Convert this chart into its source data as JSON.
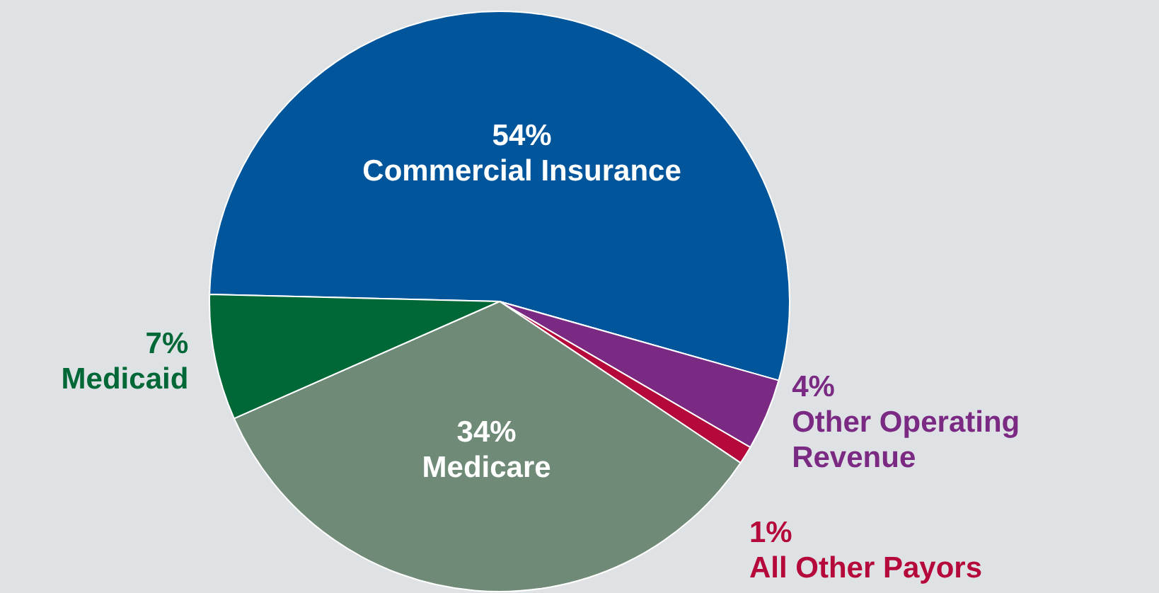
{
  "chart_data": {
    "type": "pie",
    "categories": [
      "Commercial Insurance",
      "Other Operating Revenue",
      "All Other Payors",
      "Medicare",
      "Medicaid"
    ],
    "values": [
      54,
      4,
      1,
      34,
      7
    ],
    "value_labels": [
      "54%",
      "4%",
      "1%",
      "34%",
      "7%"
    ],
    "colors": [
      "#00559b",
      "#7b2a83",
      "#b5093b",
      "#6f8b78",
      "#006837"
    ],
    "legend": false
  }
}
